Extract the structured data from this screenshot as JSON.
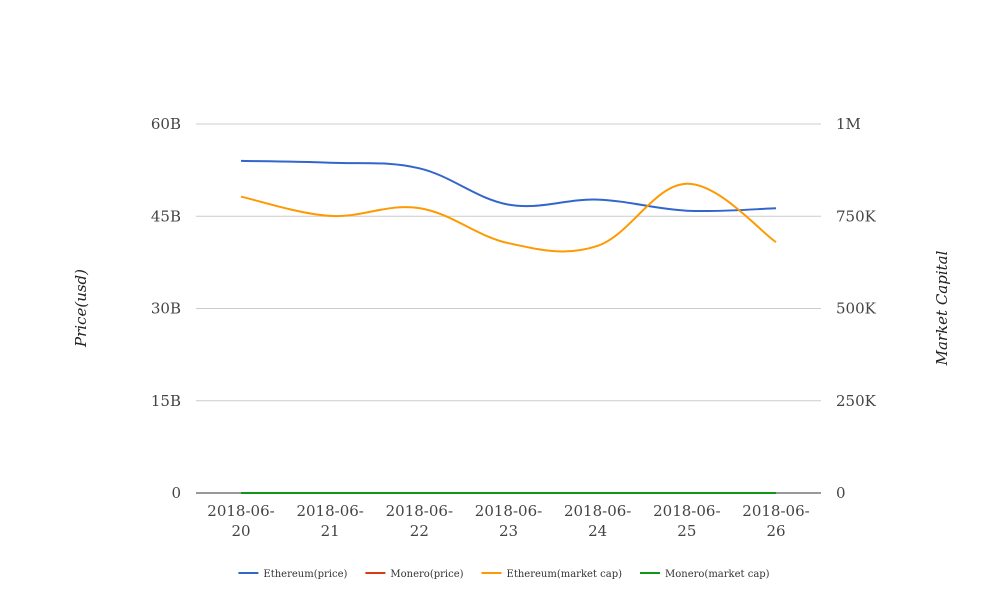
{
  "chart_data": {
    "type": "line",
    "title": "",
    "categories_lines": [
      [
        "2018-06-",
        "20"
      ],
      [
        "2018-06-",
        "21"
      ],
      [
        "2018-06-",
        "22"
      ],
      [
        "2018-06-",
        "23"
      ],
      [
        "2018-06-",
        "24"
      ],
      [
        "2018-06-",
        "25"
      ],
      [
        "2018-06-",
        "26"
      ]
    ],
    "y_left": {
      "label": "Price(usd)",
      "ticks": [
        0,
        15000000000,
        30000000000,
        45000000000,
        60000000000
      ],
      "tick_labels": [
        "0",
        "15B",
        "30B",
        "45B",
        "60B"
      ],
      "range": [
        0,
        60000000000
      ]
    },
    "y_right": {
      "label": "Market Capital",
      "ticks": [
        0,
        250000,
        500000,
        750000,
        1000000
      ],
      "tick_labels": [
        "0",
        "250K",
        "500K",
        "750K",
        "1M"
      ],
      "range": [
        0,
        1000000
      ]
    },
    "grid": true,
    "legend_position": "bottom",
    "series": [
      {
        "name": "Ethereum(price)",
        "axis": "left",
        "color": "#3366cc",
        "values": [
          54000000000,
          53700000000,
          52800000000,
          46900000000,
          47700000000,
          45900000000,
          46300000000
        ]
      },
      {
        "name": "Monero(price)",
        "axis": "left",
        "color": "#dc3912",
        "values": [
          100,
          110,
          105,
          95,
          98,
          97,
          95
        ]
      },
      {
        "name": "Ethereum(market cap)",
        "axis": "right",
        "color": "#ff9900",
        "values": [
          803000,
          751000,
          772000,
          677000,
          670000,
          838000,
          680000
        ]
      },
      {
        "name": "Monero(market cap)",
        "axis": "right",
        "color": "#109618",
        "values": [
          0.002,
          0.002,
          0.002,
          0.002,
          0.002,
          0.002,
          0.002
        ]
      }
    ]
  }
}
